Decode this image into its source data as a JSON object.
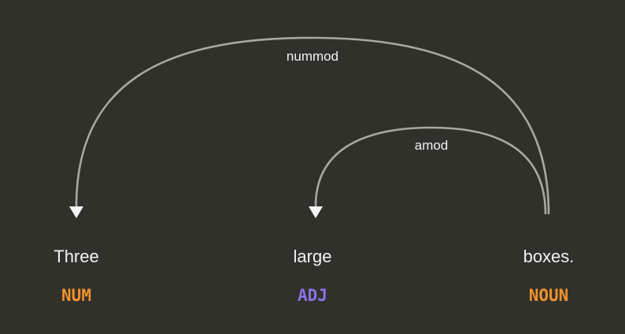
{
  "tokens": [
    {
      "text": "Three",
      "tag": "NUM",
      "tag_color": "#f0912a"
    },
    {
      "text": "large",
      "tag": "ADJ",
      "tag_color": "#8b73e6"
    },
    {
      "text": "boxes.",
      "tag": "NOUN",
      "tag_color": "#f0912a"
    }
  ],
  "arcs": [
    {
      "label": "nummod",
      "head": 2,
      "dependent": 0
    },
    {
      "label": "amod",
      "head": 2,
      "dependent": 1
    }
  ]
}
